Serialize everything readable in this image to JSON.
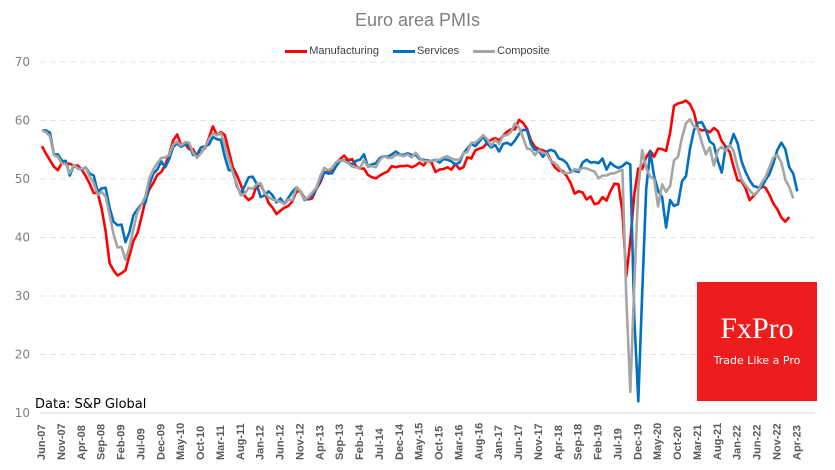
{
  "chart_data": {
    "type": "line",
    "title": "Euro area PMIs",
    "xlabel": "",
    "ylabel": "",
    "ylim": [
      10,
      70
    ],
    "yticks": [
      10,
      20,
      30,
      40,
      50,
      60,
      70
    ],
    "grid": true,
    "legend_position": "top-center",
    "x_start": "Jun-07",
    "x_end": "Aug-23",
    "xtick_labels": [
      "Jun-07",
      "Nov-07",
      "Apr-08",
      "Sep-08",
      "Feb-09",
      "Jul-09",
      "Dec-09",
      "May-10",
      "Oct-10",
      "Mar-11",
      "Aug-11",
      "Jan-12",
      "Jun-12",
      "Nov-12",
      "Apr-13",
      "Sep-13",
      "Feb-14",
      "Jul-14",
      "Dec-14",
      "May-15",
      "Oct-15",
      "Mar-16",
      "Aug-16",
      "Jan-17",
      "Jun-17",
      "Nov-17",
      "Apr-18",
      "Sep-18",
      "Feb-19",
      "Jul-19",
      "Dec-19",
      "May-20",
      "Oct-20",
      "Mar-21",
      "Aug-21",
      "Jan-22",
      "Jun-22",
      "Nov-22",
      "Apr-23"
    ],
    "series": [
      {
        "name": "Manufacturing",
        "color": "#ff0000",
        "values": [
          55.6,
          54.3,
          53.2,
          52.1,
          51.5,
          52.8,
          52.6,
          52.6,
          52.3,
          52.3,
          51.6,
          50.5,
          49.2,
          47.6,
          47.6,
          45.0,
          41.1,
          35.6,
          34.4,
          33.5,
          33.9,
          34.4,
          36.9,
          39.4,
          40.7,
          43.4,
          46.3,
          48.2,
          49.3,
          50.7,
          51.2,
          52.4,
          54.2,
          56.6,
          57.6,
          55.8,
          56.0,
          55.1,
          55.1,
          53.7,
          54.6,
          55.3,
          57.1,
          59.0,
          57.5,
          58.0,
          57.5,
          54.8,
          52.0,
          50.7,
          49.0,
          47.1,
          46.4,
          46.9,
          48.8,
          49.0,
          47.7,
          45.9,
          45.1,
          44.0,
          44.6,
          45.1,
          45.4,
          46.2,
          47.9,
          47.9,
          46.8,
          46.5,
          46.7,
          48.3,
          49.4,
          51.1,
          51.3,
          51.6,
          52.7,
          53.4,
          54.0,
          53.2,
          53.4,
          52.2,
          51.8,
          51.8,
          50.7,
          50.3,
          50.1,
          50.6,
          51.0,
          51.3,
          52.2,
          52.0,
          52.2,
          52.2,
          52.3,
          52.0,
          52.3,
          52.8,
          52.3,
          53.2,
          52.8,
          51.2,
          51.6,
          51.7,
          52.0,
          51.6,
          52.6,
          51.7,
          52.0,
          53.7,
          53.5,
          54.9,
          55.2,
          55.4,
          56.2,
          56.7,
          57.0,
          56.6,
          57.4,
          58.1,
          58.5,
          58.5,
          60.1,
          59.6,
          58.6,
          56.6,
          55.5,
          55.1,
          54.9,
          54.6,
          53.2,
          52.0,
          51.4,
          51.4,
          50.5,
          49.3,
          47.5,
          47.9,
          47.7,
          46.5,
          47.0,
          45.7,
          45.9,
          46.9,
          46.3,
          47.9,
          49.2,
          49.1,
          44.5,
          33.4,
          39.4,
          47.4,
          51.8,
          51.7,
          53.7,
          54.8,
          53.8,
          55.2,
          55.1,
          54.8,
          57.9,
          62.5,
          62.9,
          63.1,
          63.4,
          62.8,
          61.4,
          58.6,
          58.3,
          58.4,
          58.0,
          58.7,
          58.2,
          56.5,
          55.5,
          54.6,
          52.1,
          49.8,
          49.6,
          48.4,
          46.4,
          47.1,
          47.8,
          48.8,
          48.5,
          47.3,
          45.8,
          44.8,
          43.4,
          42.7,
          43.5
        ]
      },
      {
        "name": "Services",
        "color": "#0070c0",
        "values": [
          58.3,
          58.3,
          57.9,
          54.2,
          54.2,
          53.1,
          53.1,
          50.6,
          52.3,
          51.8,
          51.6,
          52.0,
          50.9,
          50.6,
          47.8,
          48.4,
          48.5,
          45.1,
          42.7,
          42.1,
          42.2,
          39.2,
          40.9,
          43.8,
          44.8,
          45.7,
          45.9,
          49.0,
          50.9,
          51.6,
          53.0,
          52.0,
          53.4,
          55.5,
          56.1,
          55.5,
          55.9,
          55.8,
          54.1,
          54.2,
          55.4,
          55.6,
          55.9,
          57.2,
          56.8,
          56.7,
          53.8,
          51.5,
          51.5,
          48.8,
          47.5,
          48.8,
          50.3,
          50.4,
          49.2,
          46.9,
          47.2,
          47.9,
          47.2,
          46.0,
          46.7,
          45.7,
          46.8,
          47.8,
          48.6,
          47.9,
          46.4,
          46.7,
          47.2,
          48.3,
          49.8,
          51.2,
          50.9,
          51.0,
          52.2,
          53.1,
          53.2,
          52.8,
          52.5,
          53.1,
          53.3,
          54.2,
          52.1,
          52.5,
          52.7,
          53.6,
          53.9,
          53.8,
          54.2,
          54.7,
          54.2,
          54.1,
          54.4,
          54.1,
          54.1,
          53.4,
          53.3,
          53.1,
          53.1,
          53.3,
          52.8,
          53.4,
          53.3,
          53.0,
          52.5,
          52.8,
          54.4,
          55.2,
          56.0,
          55.6,
          56.4,
          57.3,
          56.0,
          55.4,
          55.8,
          54.7,
          56.0,
          56.2,
          55.8,
          56.6,
          57.7,
          58.4,
          58.4,
          56.0,
          55.0,
          54.8,
          53.8,
          54.7,
          55.0,
          54.7,
          53.5,
          53.3,
          52.7,
          51.4,
          51.4,
          51.2,
          52.8,
          53.3,
          52.8,
          52.9,
          52.7,
          53.5,
          51.6,
          52.8,
          52.2,
          51.9,
          52.2,
          52.8,
          52.5,
          26.4,
          12.0,
          30.5,
          48.3,
          54.7,
          50.5,
          48.0,
          46.9,
          41.7,
          46.4,
          45.4,
          45.7,
          49.6,
          50.5,
          55.1,
          58.3,
          59.6,
          59.7,
          58.4,
          56.4,
          55.9,
          53.1,
          51.1,
          55.5,
          55.6,
          57.7,
          56.1,
          53.0,
          51.2,
          49.8,
          48.8,
          48.6,
          48.5,
          49.8,
          50.8,
          52.7,
          55.0,
          56.2,
          55.1,
          52.0,
          50.9,
          47.9
        ]
      },
      {
        "name": "Composite",
        "color": "#a5a5a5",
        "values": [
          58.3,
          58.0,
          57.3,
          54.1,
          53.8,
          52.6,
          52.6,
          51.0,
          52.4,
          51.8,
          51.7,
          52.0,
          50.4,
          49.3,
          47.3,
          47.8,
          47.0,
          43.9,
          40.6,
          38.3,
          38.4,
          36.2,
          38.3,
          41.4,
          44.3,
          45.6,
          47.0,
          50.1,
          51.6,
          52.7,
          53.6,
          53.7,
          54.1,
          55.9,
          56.4,
          55.7,
          56.3,
          56.2,
          54.5,
          53.6,
          54.4,
          55.5,
          56.8,
          57.8,
          57.5,
          57.8,
          55.8,
          53.3,
          51.1,
          49.1,
          47.2,
          47.5,
          48.5,
          48.3,
          49.1,
          49.3,
          47.6,
          46.9,
          46.5,
          46.3,
          46.1,
          45.7,
          46.5,
          46.4,
          48.6,
          47.9,
          46.5,
          46.9,
          47.7,
          48.5,
          50.5,
          51.9,
          51.5,
          51.9,
          52.9,
          53.2,
          53.1,
          52.7,
          52.1,
          52.0,
          51.9,
          53.2,
          52.1,
          52.2,
          52.0,
          53.3,
          53.9,
          53.6,
          53.6,
          54.1,
          54.1,
          53.9,
          54.2,
          53.7,
          54.5,
          53.6,
          53.1,
          53.0,
          53.1,
          53.2,
          53.3,
          53.7,
          53.9,
          53.5,
          53.3,
          53.3,
          54.4,
          54.6,
          56.2,
          56.2,
          56.8,
          57.5,
          56.8,
          55.7,
          56.7,
          56.0,
          57.4,
          57.5,
          58.1,
          59.5,
          58.8,
          57.1,
          55.2,
          55.1,
          54.1,
          54.9,
          54.5,
          54.3,
          53.1,
          52.7,
          52.0,
          51.1,
          51.0,
          51.1,
          51.7,
          51.5,
          51.9,
          51.8,
          51.5,
          51.3,
          50.1,
          50.6,
          50.6,
          50.9,
          51.0,
          51.3,
          51.6,
          29.7,
          13.6,
          31.9,
          48.5,
          54.9,
          51.9,
          50.4,
          50.0,
          45.3,
          49.1,
          47.8,
          48.8,
          53.2,
          53.8,
          57.1,
          59.5,
          60.2,
          59.0,
          58.6,
          56.2,
          54.2,
          55.4,
          52.3,
          54.9,
          55.5,
          54.8,
          55.8,
          54.8,
          52.0,
          49.9,
          48.9,
          48.1,
          47.3,
          47.8,
          49.3,
          50.3,
          52.0,
          53.7,
          54.1,
          52.8,
          49.9,
          48.6,
          46.7
        ]
      }
    ]
  },
  "source_note": "Data: S&P Global",
  "logo": {
    "brand": "FxPro",
    "tagline": "Trade Like a Pro",
    "background": "#ee1c1c"
  }
}
